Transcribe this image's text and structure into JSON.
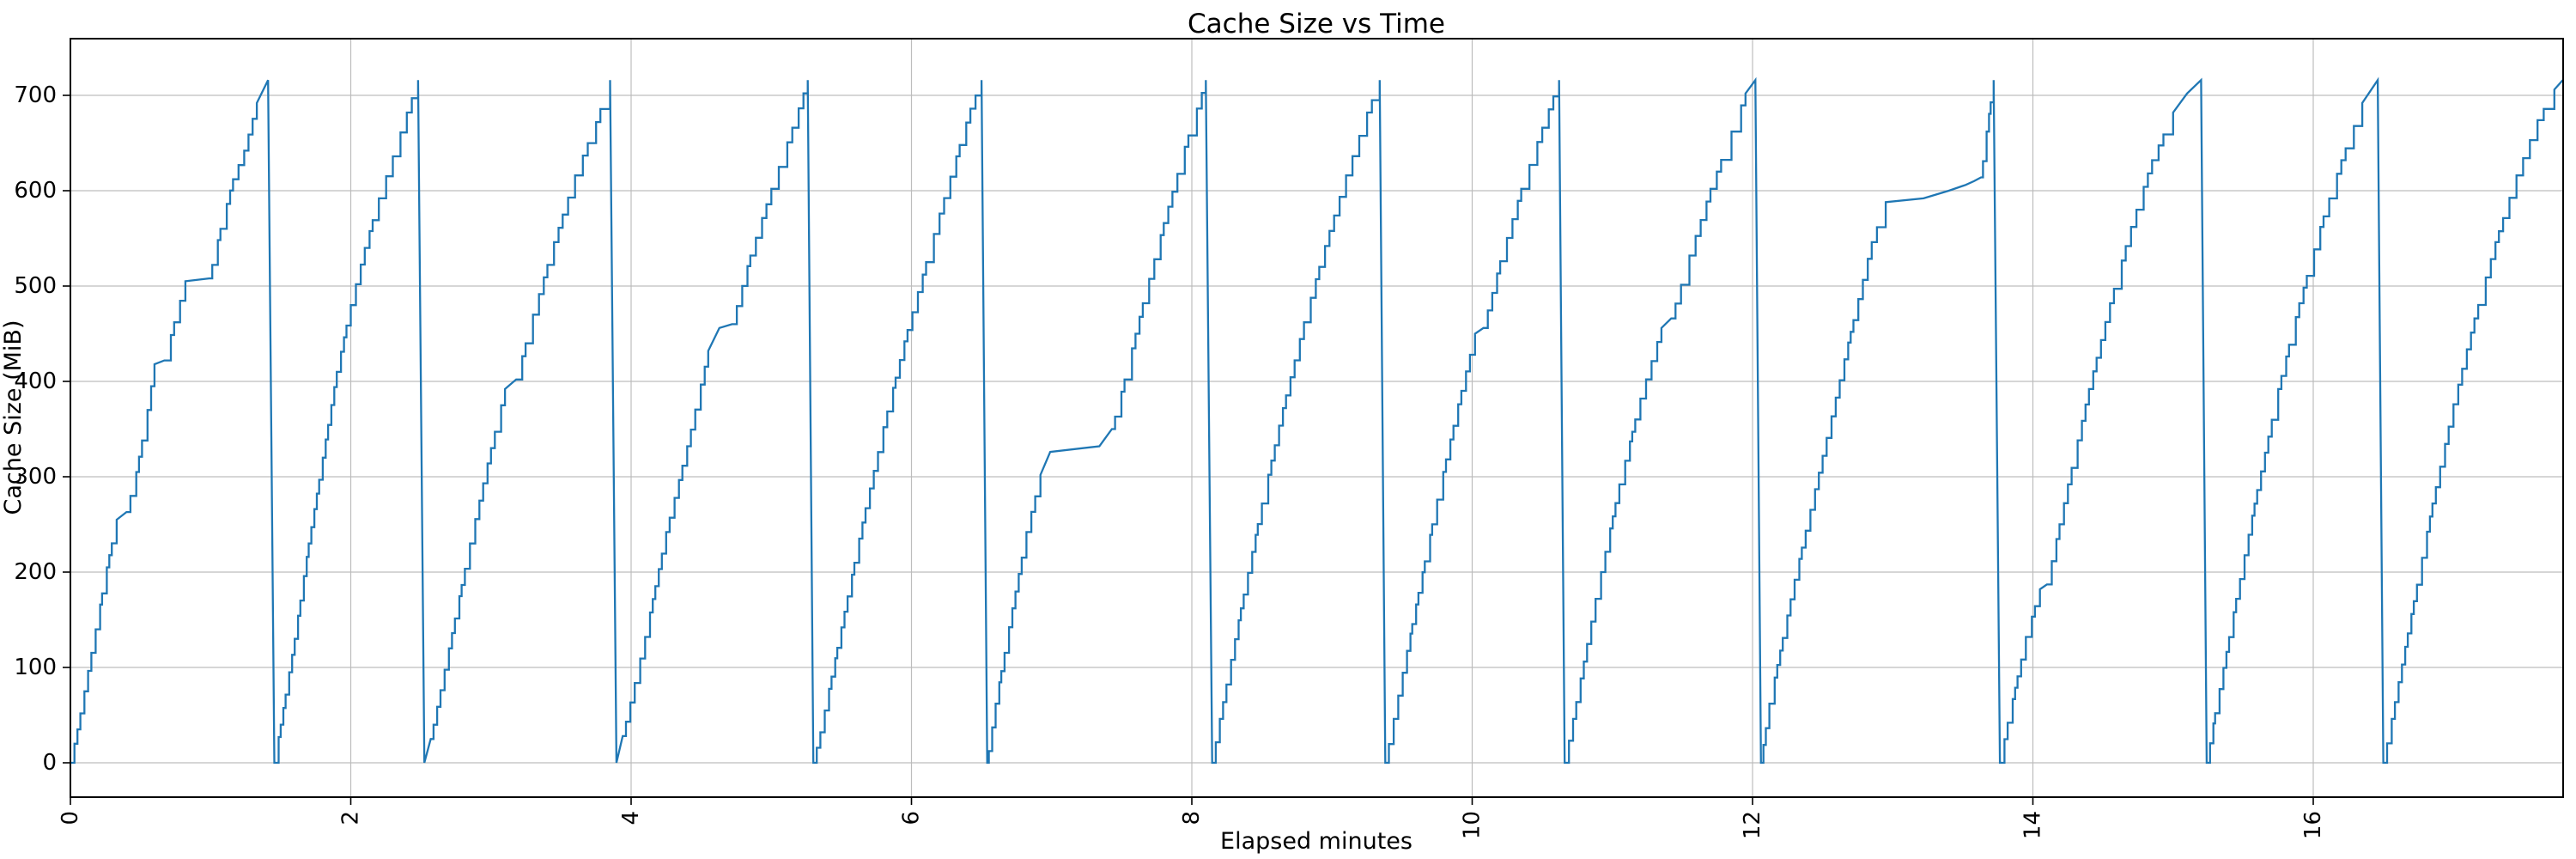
{
  "title": "Cache Size vs Time",
  "x_axis": {
    "label": "Elapsed minutes",
    "ticks": [
      0,
      2,
      4,
      6,
      8,
      10,
      12,
      14,
      16
    ],
    "min": 0,
    "max": 17.78
  },
  "y_axis": {
    "label": "Cache Size (MiB)",
    "ticks": [
      0,
      100,
      200,
      300,
      400,
      500,
      600,
      700
    ],
    "min": -36,
    "max": 759
  },
  "colors": {
    "line": "#1f77b4",
    "grid": "#bdbdbd",
    "spine": "#000000",
    "text": "#000000",
    "background": "#ffffff"
  },
  "chart_data": {
    "type": "line",
    "title": "Cache Size vs Time",
    "xlabel": "Elapsed minutes",
    "ylabel": "Cache Size (MiB)",
    "xlim": [
      0,
      17.78
    ],
    "ylim": [
      -36,
      759
    ],
    "grid": true,
    "legend": "none",
    "series": [
      {
        "name": "cache-size",
        "style": "staircase-sawtooth",
        "peak_value": 716,
        "reset_value": 0,
        "reset_times_min": [
          1.455,
          2.525,
          3.895,
          5.3,
          6.54,
          8.145,
          9.38,
          10.66,
          12.06,
          13.765,
          15.24,
          16.5
        ],
        "points": [
          [
            0.0,
            0
          ],
          [
            0.05,
            35
          ],
          [
            0.1,
            75
          ],
          [
            0.18,
            140
          ],
          [
            0.26,
            205
          ],
          [
            0.33,
            255
          ],
          [
            0.4,
            263
          ],
          [
            0.47,
            305
          ],
          [
            0.55,
            370
          ],
          [
            0.6,
            418
          ],
          [
            0.67,
            422
          ],
          [
            0.74,
            462
          ],
          [
            0.82,
            505
          ],
          [
            0.99,
            508
          ],
          [
            1.07,
            560
          ],
          [
            1.16,
            612
          ],
          [
            1.24,
            642
          ],
          [
            1.33,
            692
          ],
          [
            1.41,
            716
          ],
          [
            1.455,
            0
          ],
          [
            1.5,
            40
          ],
          [
            1.6,
            130
          ],
          [
            1.7,
            230
          ],
          [
            1.8,
            320
          ],
          [
            1.9,
            410
          ],
          [
            2.0,
            480
          ],
          [
            2.1,
            540
          ],
          [
            2.2,
            592
          ],
          [
            2.3,
            636
          ],
          [
            2.4,
            682
          ],
          [
            2.48,
            716
          ],
          [
            2.525,
            0
          ],
          [
            2.57,
            25
          ],
          [
            2.7,
            120
          ],
          [
            2.85,
            230
          ],
          [
            3.0,
            330
          ],
          [
            3.1,
            392
          ],
          [
            3.18,
            402
          ],
          [
            3.3,
            470
          ],
          [
            3.45,
            546
          ],
          [
            3.6,
            616
          ],
          [
            3.75,
            672
          ],
          [
            3.85,
            716
          ],
          [
            3.895,
            0
          ],
          [
            3.94,
            28
          ],
          [
            4.1,
            132
          ],
          [
            4.25,
            242
          ],
          [
            4.4,
            332
          ],
          [
            4.55,
            432
          ],
          [
            4.63,
            456
          ],
          [
            4.72,
            460
          ],
          [
            4.85,
            532
          ],
          [
            5.0,
            602
          ],
          [
            5.15,
            666
          ],
          [
            5.26,
            716
          ],
          [
            5.3,
            0
          ],
          [
            5.35,
            32
          ],
          [
            5.5,
            142
          ],
          [
            5.65,
            252
          ],
          [
            5.8,
            352
          ],
          [
            5.95,
            442
          ],
          [
            6.08,
            512
          ],
          [
            6.2,
            576
          ],
          [
            6.32,
            636
          ],
          [
            6.42,
            686
          ],
          [
            6.5,
            716
          ],
          [
            6.54,
            0
          ],
          [
            6.6,
            62
          ],
          [
            6.72,
            162
          ],
          [
            6.82,
            242
          ],
          [
            6.92,
            302
          ],
          [
            6.99,
            326
          ],
          [
            7.34,
            332
          ],
          [
            7.43,
            350
          ],
          [
            7.52,
            402
          ],
          [
            7.65,
            482
          ],
          [
            7.8,
            566
          ],
          [
            7.95,
            646
          ],
          [
            8.1,
            716
          ],
          [
            8.145,
            0
          ],
          [
            8.2,
            46
          ],
          [
            8.35,
            162
          ],
          [
            8.5,
            272
          ],
          [
            8.65,
            372
          ],
          [
            8.8,
            462
          ],
          [
            8.95,
            542
          ],
          [
            9.1,
            616
          ],
          [
            9.25,
            682
          ],
          [
            9.34,
            716
          ],
          [
            9.38,
            0
          ],
          [
            9.44,
            46
          ],
          [
            9.6,
            166
          ],
          [
            9.75,
            276
          ],
          [
            9.9,
            376
          ],
          [
            10.02,
            450
          ],
          [
            10.08,
            456
          ],
          [
            10.2,
            526
          ],
          [
            10.35,
            602
          ],
          [
            10.5,
            666
          ],
          [
            10.62,
            716
          ],
          [
            10.66,
            0
          ],
          [
            10.72,
            46
          ],
          [
            10.88,
            172
          ],
          [
            11.05,
            292
          ],
          [
            11.2,
            382
          ],
          [
            11.35,
            456
          ],
          [
            11.42,
            466
          ],
          [
            11.55,
            532
          ],
          [
            11.7,
            602
          ],
          [
            11.85,
            662
          ],
          [
            11.95,
            702
          ],
          [
            12.02,
            716
          ],
          [
            12.06,
            0
          ],
          [
            12.12,
            62
          ],
          [
            12.3,
            192
          ],
          [
            12.5,
            322
          ],
          [
            12.7,
            452
          ],
          [
            12.85,
            546
          ],
          [
            12.95,
            588
          ],
          [
            13.22,
            592
          ],
          [
            13.4,
            600
          ],
          [
            13.52,
            606
          ],
          [
            13.58,
            610
          ],
          [
            13.63,
            614
          ],
          [
            13.67,
            662
          ],
          [
            13.72,
            716
          ],
          [
            13.765,
            0
          ],
          [
            13.82,
            42
          ],
          [
            13.95,
            132
          ],
          [
            14.05,
            182
          ],
          [
            14.1,
            187
          ],
          [
            14.25,
            292
          ],
          [
            14.4,
            392
          ],
          [
            14.55,
            482
          ],
          [
            14.7,
            562
          ],
          [
            14.85,
            632
          ],
          [
            15.0,
            682
          ],
          [
            15.1,
            702
          ],
          [
            15.2,
            716
          ],
          [
            15.24,
            0
          ],
          [
            15.3,
            52
          ],
          [
            15.45,
            172
          ],
          [
            15.6,
            286
          ],
          [
            15.75,
            392
          ],
          [
            15.9,
            482
          ],
          [
            16.05,
            562
          ],
          [
            16.2,
            632
          ],
          [
            16.35,
            692
          ],
          [
            16.46,
            716
          ],
          [
            16.5,
            0
          ],
          [
            16.56,
            46
          ],
          [
            16.7,
            156
          ],
          [
            16.85,
            272
          ],
          [
            17.0,
            376
          ],
          [
            17.15,
            466
          ],
          [
            17.3,
            546
          ],
          [
            17.45,
            616
          ],
          [
            17.6,
            674
          ],
          [
            17.72,
            706
          ],
          [
            17.78,
            716
          ]
        ]
      }
    ]
  }
}
